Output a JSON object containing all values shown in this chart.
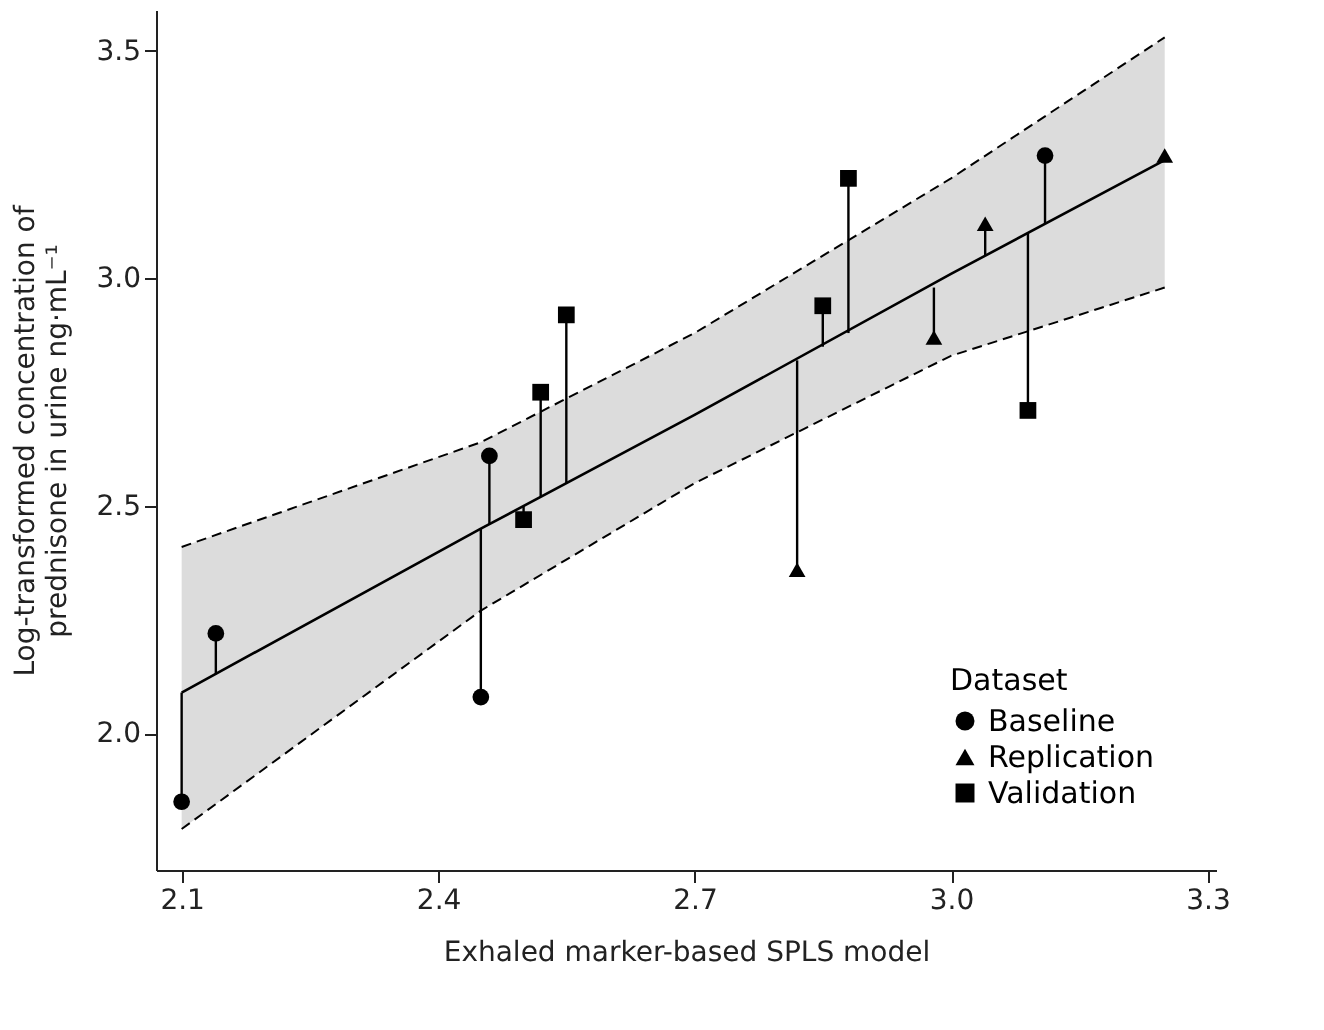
{
  "chart_data": {
    "type": "scatter",
    "xlabel": "Exhaled marker-based SPLS model",
    "ylabel": "Log-transformed concentration of\nprednisone in urine ng·mL⁻¹",
    "legend_title": "Dataset",
    "xlim": [
      2.07,
      3.31
    ],
    "xticks": [
      2.1,
      2.4,
      2.7,
      {
        "value": 3,
        "label": "3.0"
      },
      3.3
    ],
    "ylim": [
      1.7,
      3.59
    ],
    "yticks": [
      {
        "value": 2,
        "label": "2.0"
      },
      2.5,
      {
        "value": 3,
        "label": "3.0"
      },
      3.5
    ],
    "grid": false,
    "legend": "bottom right",
    "series": [
      {
        "type": "line",
        "color": "#000000",
        "line_style": "solid",
        "x": [
          2.1,
          2.45,
          2.7,
          3.0,
          3.25
        ],
        "values": [
          2.09,
          2.45,
          2.7,
          3.01,
          3.26
        ],
        "lower": [
          1.79,
          2.27,
          2.55,
          2.83,
          2.98
        ],
        "upper": [
          2.41,
          2.64,
          2.88,
          3.22,
          3.53
        ]
      },
      {
        "type": "line",
        "color": "#000000",
        "line_style": "dashed",
        "x": [
          2.1,
          2.45,
          2.7,
          3.0,
          3.25
        ],
        "values": [
          1.79,
          2.27,
          2.55,
          2.83,
          2.98
        ]
      },
      {
        "type": "line",
        "color": "#000000",
        "line_style": "dashed",
        "x": [
          2.1,
          2.45,
          2.7,
          3.0,
          3.25
        ],
        "values": [
          2.41,
          2.64,
          2.88,
          3.22,
          3.53
        ]
      },
      {
        "name": "Baseline",
        "marker": "circle",
        "color": "#000000",
        "x": [
          2.1,
          2.14,
          2.45,
          2.46,
          3.11
        ],
        "values": [
          1.85,
          2.22,
          2.08,
          2.61,
          3.27
        ],
        "errors": [
          [
            1.85,
            2.09
          ],
          [
            2.13,
            2.22
          ],
          [
            2.08,
            2.45
          ],
          [
            2.46,
            2.61
          ],
          [
            3.12,
            3.27
          ]
        ]
      },
      {
        "name": "Replication",
        "marker": "triangle",
        "color": "#000000",
        "x": [
          2.82,
          2.98,
          3.04,
          3.25
        ],
        "values": [
          2.36,
          2.87,
          3.12,
          3.27
        ],
        "errors": [
          [
            2.36,
            2.82
          ],
          [
            2.87,
            2.98
          ],
          [
            3.05,
            3.12
          ],
          [
            3.26,
            3.27
          ]
        ]
      },
      {
        "name": "Validation",
        "marker": "square",
        "color": "#000000",
        "x": [
          2.5,
          2.52,
          2.55,
          2.85,
          2.88,
          3.09
        ],
        "values": [
          2.47,
          2.75,
          2.92,
          2.94,
          3.22,
          2.71
        ],
        "errors": [
          [
            2.47,
            2.5
          ],
          [
            2.52,
            2.75
          ],
          [
            2.55,
            2.92
          ],
          [
            2.85,
            2.94
          ],
          [
            2.88,
            3.22
          ],
          [
            2.71,
            3.1
          ]
        ]
      }
    ]
  }
}
